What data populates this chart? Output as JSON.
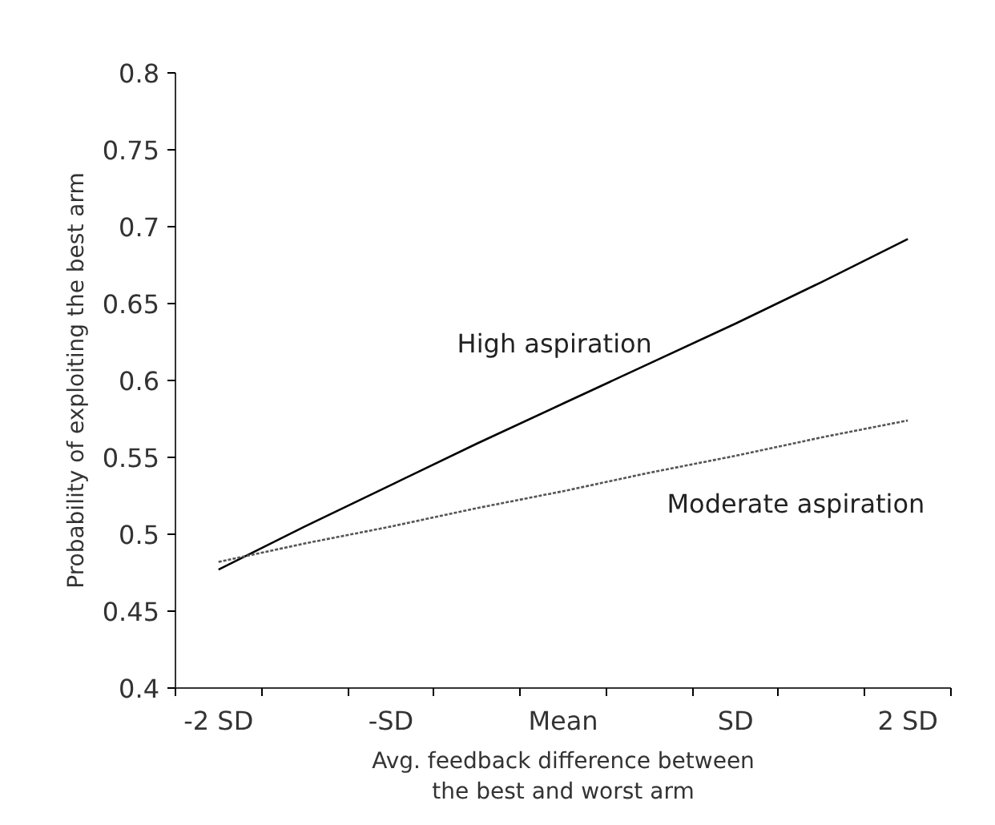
{
  "chart_data": {
    "type": "line",
    "xlabel": "Avg. feedback difference between\nthe best and worst arm",
    "ylabel": "Probability of exploiting the best arm",
    "categories": [
      "-2 SD",
      null,
      "-SD",
      null,
      "Mean",
      null,
      "SD",
      null,
      "2 SD"
    ],
    "series": [
      {
        "name": "High aspiration",
        "color": "#000000",
        "line_style": "solid",
        "values": [
          0.477,
          0.505,
          0.532,
          0.559,
          0.585,
          0.611,
          0.637,
          0.664,
          0.692
        ]
      },
      {
        "name": "Moderate aspiration",
        "color": "#555555",
        "line_style": "dotted",
        "values": [
          0.482,
          0.494,
          0.505,
          0.517,
          0.528,
          0.54,
          0.551,
          0.563,
          0.574
        ]
      }
    ],
    "ylim": [
      0.4,
      0.8
    ],
    "yticks": [
      0.4,
      0.45,
      0.5,
      0.55,
      0.6,
      0.65,
      0.7,
      0.75,
      0.8
    ],
    "grid": false,
    "legend": false
  }
}
